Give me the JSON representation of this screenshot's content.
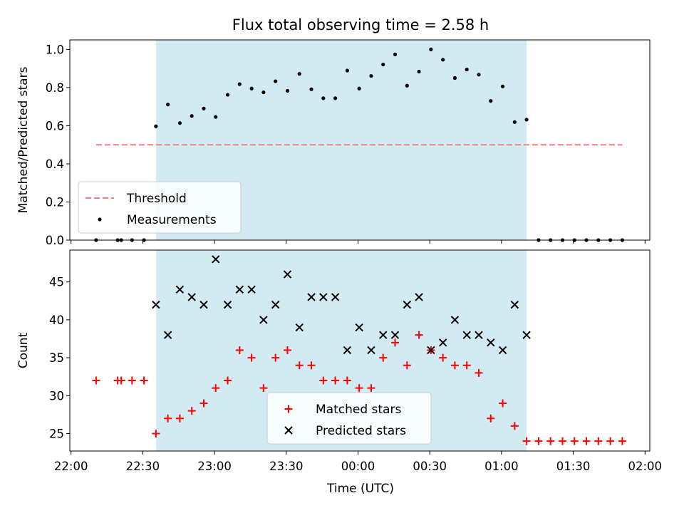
{
  "chart_data": {
    "title": "Flux total observing time = 2.58 h",
    "xlabel": "Time (UTC)",
    "x_ticks": [
      "22:00",
      "22:30",
      "23:00",
      "23:30",
      "00:00",
      "00:30",
      "01:00",
      "01:30",
      "02:00"
    ],
    "x_tick_minutes": [
      0,
      30,
      60,
      90,
      120,
      150,
      180,
      210,
      240
    ],
    "xlim_minutes": [
      -0.5,
      242
    ],
    "shaded_span_minutes": [
      35.5,
      190.5
    ],
    "shaded_color": "#add8e6",
    "panels": [
      {
        "type": "scatter",
        "ylabel": "Matched/Predicted stars",
        "ylim": [
          0,
          1.05
        ],
        "y_ticks": [
          0.0,
          0.2,
          0.4,
          0.6,
          0.8,
          1.0
        ],
        "legend_position": "lower-left",
        "threshold": {
          "name": "Threshold",
          "y": 0.5,
          "x_range": [
            10.5,
            230.5
          ],
          "color": "#f08080",
          "style": "dashed"
        },
        "series": [
          {
            "name": "Measurements",
            "color": "#000000",
            "marker": "dot",
            "points": [
              [
                10.5,
                0
              ],
              [
                19.5,
                0
              ],
              [
                21,
                0
              ],
              [
                25.5,
                0
              ],
              [
                30.5,
                0
              ],
              [
                35.5,
                0.597
              ],
              [
                40.5,
                0.711
              ],
              [
                45.5,
                0.614
              ],
              [
                50.5,
                0.651
              ],
              [
                55.5,
                0.69
              ],
              [
                60.5,
                0.646
              ],
              [
                65.5,
                0.762
              ],
              [
                70.5,
                0.818
              ],
              [
                75.5,
                0.795
              ],
              [
                80.5,
                0.775
              ],
              [
                85.5,
                0.833
              ],
              [
                90.5,
                0.783
              ],
              [
                95.5,
                0.872
              ],
              [
                100.5,
                0.791
              ],
              [
                105.5,
                0.744
              ],
              [
                110.5,
                0.744
              ],
              [
                115.5,
                0.889
              ],
              [
                120.5,
                0.795
              ],
              [
                125.5,
                0.861
              ],
              [
                130.5,
                0.921
              ],
              [
                135.5,
                0.974
              ],
              [
                140.5,
                0.81
              ],
              [
                145.5,
                0.884
              ],
              [
                150.5,
                1.0
              ],
              [
                155.5,
                0.946
              ],
              [
                160.5,
                0.85
              ],
              [
                165.5,
                0.895
              ],
              [
                170.5,
                0.868
              ],
              [
                175.5,
                0.73
              ],
              [
                180.5,
                0.806
              ],
              [
                185.5,
                0.619
              ],
              [
                190.5,
                0.632
              ],
              [
                195.5,
                0
              ],
              [
                200.5,
                0
              ],
              [
                205.5,
                0
              ],
              [
                210.5,
                0
              ],
              [
                215.5,
                0
              ],
              [
                220.5,
                0
              ],
              [
                225.5,
                0
              ],
              [
                230.5,
                0
              ]
            ]
          }
        ]
      },
      {
        "type": "scatter",
        "ylabel": "Count",
        "ylim": [
          22.7,
          49.2
        ],
        "y_ticks": [
          25,
          30,
          35,
          40,
          45
        ],
        "legend_position": "lower-center",
        "series": [
          {
            "name": "Matched stars",
            "color": "#ff0000",
            "marker": "plus",
            "points": [
              [
                10.5,
                32
              ],
              [
                19.5,
                32
              ],
              [
                21,
                32
              ],
              [
                25.5,
                32
              ],
              [
                30.5,
                32
              ],
              [
                35.5,
                25
              ],
              [
                40.5,
                27
              ],
              [
                45.5,
                27
              ],
              [
                50.5,
                28
              ],
              [
                55.5,
                29
              ],
              [
                60.5,
                31
              ],
              [
                65.5,
                32
              ],
              [
                70.5,
                36
              ],
              [
                75.5,
                35
              ],
              [
                80.5,
                31
              ],
              [
                85.5,
                35
              ],
              [
                90.5,
                36
              ],
              [
                95.5,
                34
              ],
              [
                100.5,
                34
              ],
              [
                105.5,
                32
              ],
              [
                110.5,
                32
              ],
              [
                115.5,
                32
              ],
              [
                120.5,
                31
              ],
              [
                125.5,
                31
              ],
              [
                130.5,
                35
              ],
              [
                135.5,
                37
              ],
              [
                140.5,
                34
              ],
              [
                145.5,
                38
              ],
              [
                150.5,
                36
              ],
              [
                155.5,
                35
              ],
              [
                160.5,
                34
              ],
              [
                165.5,
                34
              ],
              [
                170.5,
                33
              ],
              [
                175.5,
                27
              ],
              [
                180.5,
                29
              ],
              [
                185.5,
                26
              ],
              [
                190.5,
                24
              ],
              [
                195.5,
                24
              ],
              [
                200.5,
                24
              ],
              [
                205.5,
                24
              ],
              [
                210.5,
                24
              ],
              [
                215.5,
                24
              ],
              [
                220.5,
                24
              ],
              [
                225.5,
                24
              ],
              [
                230.5,
                24
              ]
            ]
          },
          {
            "name": "Predicted stars",
            "color": "#000000",
            "marker": "x",
            "points": [
              [
                35.5,
                42
              ],
              [
                40.5,
                38
              ],
              [
                45.5,
                44
              ],
              [
                50.5,
                43
              ],
              [
                55.5,
                42
              ],
              [
                60.5,
                48
              ],
              [
                65.5,
                42
              ],
              [
                70.5,
                44
              ],
              [
                75.5,
                44
              ],
              [
                80.5,
                40
              ],
              [
                85.5,
                42
              ],
              [
                90.5,
                46
              ],
              [
                95.5,
                39
              ],
              [
                100.5,
                43
              ],
              [
                105.5,
                43
              ],
              [
                110.5,
                43
              ],
              [
                115.5,
                36
              ],
              [
                120.5,
                39
              ],
              [
                125.5,
                36
              ],
              [
                130.5,
                38
              ],
              [
                135.5,
                38
              ],
              [
                140.5,
                42
              ],
              [
                145.5,
                43
              ],
              [
                150.5,
                36
              ],
              [
                155.5,
                37
              ],
              [
                160.5,
                40
              ],
              [
                165.5,
                38
              ],
              [
                170.5,
                38
              ],
              [
                175.5,
                37
              ],
              [
                180.5,
                36
              ],
              [
                185.5,
                42
              ],
              [
                190.5,
                38
              ]
            ]
          }
        ]
      }
    ]
  }
}
